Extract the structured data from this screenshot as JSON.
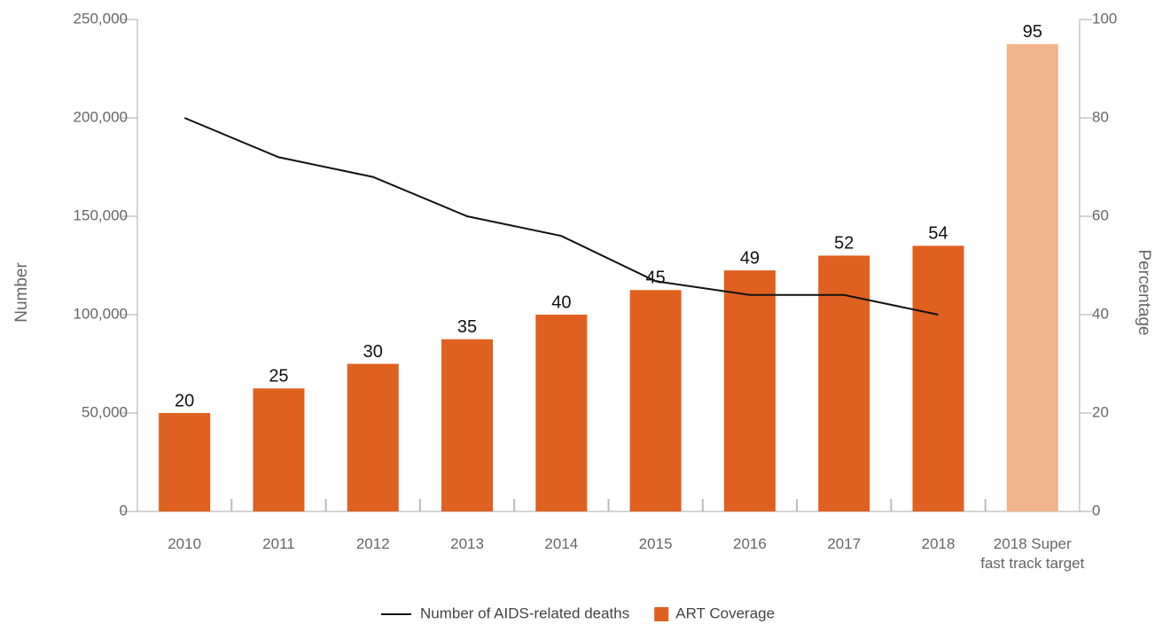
{
  "chart_data": {
    "type": "combo",
    "ylabel": "Number",
    "y2label": "Percentage",
    "categories": [
      "2010",
      "2011",
      "2012",
      "2013",
      "2014",
      "2015",
      "2016",
      "2017",
      "2018",
      "2018 Super\nfast track target"
    ],
    "series": [
      {
        "name": "Number of AIDS-related deaths",
        "type": "line",
        "color": "#111111",
        "values": [
          200000,
          180000,
          170000,
          150000,
          140000,
          117000,
          110000,
          110000,
          100000,
          null
        ]
      },
      {
        "name": "ART Coverage",
        "type": "bar",
        "axis": "y2",
        "color": "#e0601f",
        "colors": [
          "#e0601f",
          "#e0601f",
          "#e0601f",
          "#e0601f",
          "#e0601f",
          "#e0601f",
          "#e0601f",
          "#e0601f",
          "#e0601f",
          "#f2b48c"
        ],
        "values": [
          20,
          25,
          30,
          35,
          40,
          45,
          49,
          52,
          54,
          95
        ]
      }
    ],
    "ylim": [
      0,
      250000
    ],
    "yticks": [
      0,
      {
        "value": 50000,
        "label": "50,000"
      },
      {
        "value": 100000,
        "label": "100,000"
      },
      {
        "value": 150000,
        "label": "150,000"
      },
      {
        "value": 200000,
        "label": "200,000"
      },
      {
        "value": 250000,
        "label": "250,000"
      }
    ],
    "y2lim": [
      0,
      100
    ],
    "y2ticks": [
      0,
      20,
      40,
      60,
      80,
      100
    ],
    "grid": false,
    "legend": "bottom"
  }
}
